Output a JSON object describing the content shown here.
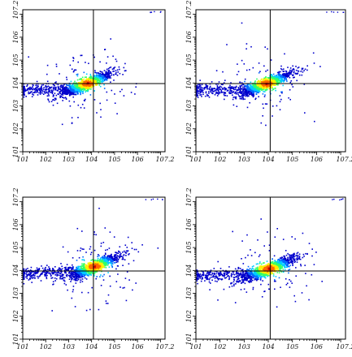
{
  "chart_data": [
    {
      "type": "scatter",
      "panel": "top-left",
      "xlabel": "",
      "ylabel": "",
      "xscale": "log",
      "yscale": "log",
      "xlim": [
        10,
        15848931.9
      ],
      "ylim": [
        10,
        15848931.9
      ],
      "x_tick_labels": [
        "10^1",
        "10^2",
        "10^3",
        "10^4",
        "10^5",
        "10^6",
        "10^7.2"
      ],
      "y_tick_labels": [
        "10^1",
        "10^2",
        "10^3",
        "10^4",
        "10^5",
        "10^6",
        "10^7.2"
      ],
      "quadrant_gate": {
        "x": 12000,
        "y": 9500
      },
      "population": {
        "x_range_log": [
          0.7,
          4.9
        ],
        "y_range_log": [
          3.0,
          4.9
        ],
        "peak": [
          3.8,
          4.0
        ]
      },
      "grid": false
    },
    {
      "type": "scatter",
      "panel": "top-right",
      "xlabel": "",
      "ylabel": "",
      "xscale": "log",
      "yscale": "log",
      "xlim": [
        10,
        15848931.9
      ],
      "ylim": [
        10,
        15848931.9
      ],
      "x_tick_labels": [
        "10^1",
        "10^2",
        "10^3",
        "10^4",
        "10^5",
        "10^6",
        "10^7.2"
      ],
      "y_tick_labels": [
        "10^1",
        "10^2",
        "10^3",
        "10^4",
        "10^5",
        "10^6",
        "10^7.2"
      ],
      "quadrant_gate": {
        "x": 12000,
        "y": 9500
      },
      "population": {
        "x_range_log": [
          0.8,
          4.9
        ],
        "y_range_log": [
          3.1,
          4.9
        ],
        "peak": [
          3.9,
          4.0
        ]
      },
      "grid": false
    },
    {
      "type": "scatter",
      "panel": "bottom-left",
      "xlabel": "",
      "ylabel": "",
      "xscale": "log",
      "yscale": "log",
      "xlim": [
        10,
        15848931.9
      ],
      "ylim": [
        10,
        15848931.9
      ],
      "x_tick_labels": [
        "10^1",
        "10^2",
        "10^3",
        "10^4",
        "10^5",
        "10^6",
        "10^7.2"
      ],
      "y_tick_labels": [
        "10^1",
        "10^2",
        "10^3",
        "10^4",
        "10^5",
        "10^6",
        "10^7.2"
      ],
      "quadrant_gate": {
        "x": 12000,
        "y": 9500
      },
      "population": {
        "x_range_log": [
          0.7,
          5.0
        ],
        "y_range_log": [
          3.2,
          5.1
        ],
        "peak": [
          4.1,
          4.2
        ]
      },
      "grid": false
    },
    {
      "type": "scatter",
      "panel": "bottom-right",
      "xlabel": "",
      "ylabel": "",
      "xscale": "log",
      "yscale": "log",
      "xlim": [
        10,
        15848931.9
      ],
      "ylim": [
        10,
        15848931.9
      ],
      "x_tick_labels": [
        "10^1",
        "10^2",
        "10^3",
        "10^4",
        "10^5",
        "10^6",
        "10^7.2"
      ],
      "y_tick_labels": [
        "10^1",
        "10^2",
        "10^3",
        "10^4",
        "10^5",
        "10^6",
        "10^7.2"
      ],
      "quadrant_gate": {
        "x": 12000,
        "y": 9500
      },
      "population": {
        "x_range_log": [
          0.9,
          5.0
        ],
        "y_range_log": [
          3.1,
          5.0
        ],
        "peak": [
          4.0,
          4.1
        ]
      },
      "grid": false
    }
  ],
  "colors": {
    "density": [
      "#0000cc",
      "#0066ff",
      "#00ccff",
      "#33ff66",
      "#ffee00",
      "#ff6600",
      "#cc0000"
    ],
    "axis": "#000000",
    "gate": "#000000"
  }
}
